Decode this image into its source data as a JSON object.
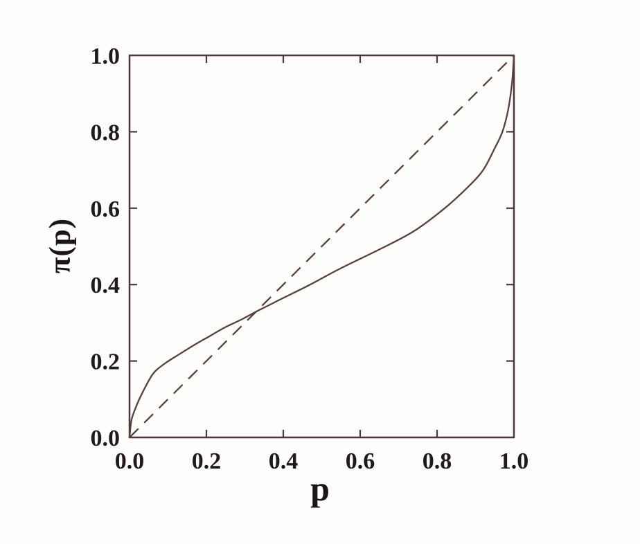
{
  "chart_data": {
    "type": "line",
    "title": "",
    "xlabel": "p",
    "ylabel": "π(p)",
    "xlim": [
      0,
      1
    ],
    "ylim": [
      0,
      1
    ],
    "grid": false,
    "legend": "none",
    "tick_values": [
      0,
      0.2,
      0.4,
      0.6,
      0.8,
      1
    ],
    "x_tick_labels": [
      "0.0",
      "0.2",
      "0.4",
      "0.6",
      "0.8",
      "1.0"
    ],
    "y_tick_labels": [
      "0.0",
      "0.2",
      "0.4",
      "0.6",
      "0.8",
      "1.0"
    ],
    "inner_tick_values": [
      0.2,
      0.4,
      0.6,
      0.8
    ],
    "series": [
      {
        "name": "probability-weighting-curve",
        "line_style": "solid",
        "points": [
          [
            0,
            0
          ],
          [
            0.005,
            0.045
          ],
          [
            0.015,
            0.075
          ],
          [
            0.03,
            0.11
          ],
          [
            0.06,
            0.165
          ],
          [
            0.09,
            0.192
          ],
          [
            0.13,
            0.218
          ],
          [
            0.17,
            0.243
          ],
          [
            0.21,
            0.266
          ],
          [
            0.25,
            0.289
          ],
          [
            0.29,
            0.308
          ],
          [
            0.335,
            0.332
          ],
          [
            0.4,
            0.365
          ],
          [
            0.47,
            0.4
          ],
          [
            0.55,
            0.443
          ],
          [
            0.65,
            0.492
          ],
          [
            0.74,
            0.54
          ],
          [
            0.82,
            0.6
          ],
          [
            0.88,
            0.655
          ],
          [
            0.92,
            0.7
          ],
          [
            0.95,
            0.757
          ],
          [
            0.97,
            0.8
          ],
          [
            0.985,
            0.858
          ],
          [
            0.995,
            0.928
          ],
          [
            1,
            1
          ]
        ]
      },
      {
        "name": "identity-diagonal",
        "line_style": "dashed",
        "points": [
          [
            0,
            0
          ],
          [
            1,
            1
          ]
        ]
      }
    ],
    "colors": {
      "line": "#4e353b",
      "curve": "#57403f",
      "tick_text": "#201a1a",
      "background": "#fdfdfc"
    }
  }
}
